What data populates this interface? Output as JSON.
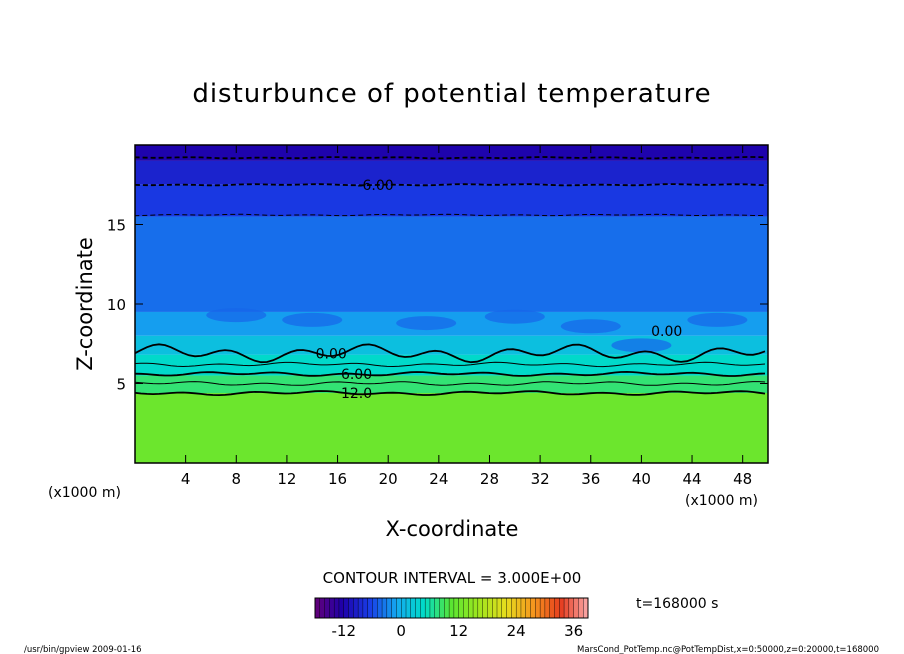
{
  "chart_data": {
    "type": "heatmap",
    "title": "disturbunce of potential temperature",
    "xlabel": "X-coordinate",
    "ylabel": "Z-coordinate",
    "x_unit_label": "(x1000 m)",
    "y_unit_label": "(x1000 m)",
    "xlim": [
      0,
      50
    ],
    "ylim": [
      0,
      20
    ],
    "x_ticks": [
      "4",
      "8",
      "12",
      "16",
      "20",
      "24",
      "28",
      "32",
      "36",
      "40",
      "44",
      "48"
    ],
    "y_ticks": [
      "5",
      "10",
      "15"
    ],
    "contour_interval_text": "CONTOUR INTERVAL = 3.000E+00",
    "time_text": "t=168000 s",
    "colorbar": {
      "min": -18,
      "max": 39,
      "tick_labels": [
        "-12",
        "0",
        "12",
        "24",
        "36"
      ],
      "tick_values": [
        -12,
        0,
        12,
        24,
        36
      ]
    },
    "contour_labels": [
      {
        "text": "-6.00",
        "x": 19,
        "z": 17.5
      },
      {
        "text": "0.00",
        "x": 15.5,
        "z": 6.9
      },
      {
        "text": "6.00",
        "x": 17.5,
        "z": 5.6
      },
      {
        "text": "12.0",
        "x": 17.5,
        "z": 4.4
      },
      {
        "text": "0.00",
        "x": 42,
        "z": 8.3
      }
    ],
    "bands": [
      {
        "z0": 19.0,
        "z1": 20.0,
        "value": -12
      },
      {
        "z0": 17.5,
        "z1": 19.0,
        "value": -9
      },
      {
        "z0": 15.5,
        "z1": 17.5,
        "value": -7
      },
      {
        "z0": 9.5,
        "z1": 15.5,
        "value": -4
      },
      {
        "z0": 8.0,
        "z1": 9.5,
        "value": -1.5
      },
      {
        "z0": 6.8,
        "z1": 8.0,
        "value": 1.5
      },
      {
        "z0": 5.5,
        "z1": 6.8,
        "value": 4.5
      },
      {
        "z0": 4.4,
        "z1": 5.5,
        "value": 8
      },
      {
        "z0": 0.0,
        "z1": 4.4,
        "value": 12
      }
    ],
    "contour_levels": [
      {
        "z": 19.2,
        "value": -12,
        "style": "dashed"
      },
      {
        "z": 17.5,
        "value": -6,
        "style": "dashed"
      },
      {
        "z": 15.6,
        "value": -3,
        "style": "dashed"
      },
      {
        "z": 6.9,
        "value": 0,
        "style": "solid"
      },
      {
        "z": 6.2,
        "value": 3,
        "style": "solid"
      },
      {
        "z": 5.6,
        "value": 6,
        "style": "solid"
      },
      {
        "z": 5.0,
        "value": 9,
        "style": "solid"
      },
      {
        "z": 4.4,
        "value": 12,
        "style": "solid"
      }
    ]
  },
  "footer": {
    "left": "/usr/bin/gpview   2009-01-16",
    "right": "MarsCond_PotTemp.nc@PotTempDist,x=0:50000,z=0:20000,t=168000"
  }
}
